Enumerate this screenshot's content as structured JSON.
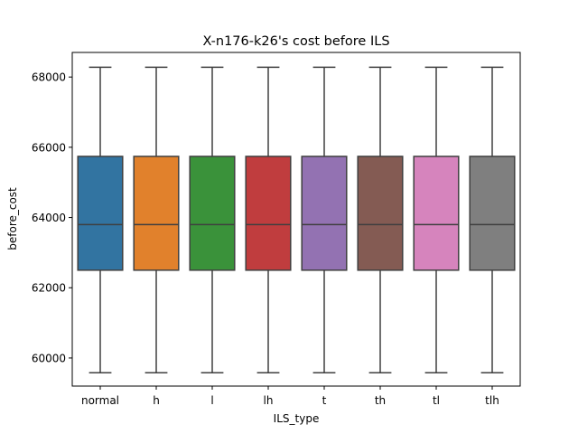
{
  "chart_data": {
    "type": "box",
    "title": "X-n176-k26's cost before ILS",
    "xlabel": "ILS_type",
    "ylabel": "before_cost",
    "ylim": [
      59200,
      68700
    ],
    "yticks": [
      60000,
      62000,
      64000,
      66000,
      68000
    ],
    "ytick_labels": [
      "60000",
      "62000",
      "64000",
      "66000",
      "68000"
    ],
    "grid": false,
    "legend": "none",
    "categories": [
      "normal",
      "h",
      "l",
      "lh",
      "t",
      "th",
      "tl",
      "tlh"
    ],
    "boxes": [
      {
        "category": "normal",
        "whisker_low": 59580,
        "q1": 62500,
        "median": 63800,
        "q3": 65740,
        "whisker_high": 68280,
        "color": "#3274a1"
      },
      {
        "category": "h",
        "whisker_low": 59580,
        "q1": 62500,
        "median": 63800,
        "q3": 65740,
        "whisker_high": 68280,
        "color": "#e1812c"
      },
      {
        "category": "l",
        "whisker_low": 59580,
        "q1": 62500,
        "median": 63800,
        "q3": 65740,
        "whisker_high": 68280,
        "color": "#3a923a"
      },
      {
        "category": "lh",
        "whisker_low": 59580,
        "q1": 62500,
        "median": 63800,
        "q3": 65740,
        "whisker_high": 68280,
        "color": "#c03d3e"
      },
      {
        "category": "t",
        "whisker_low": 59580,
        "q1": 62500,
        "median": 63800,
        "q3": 65740,
        "whisker_high": 68280,
        "color": "#9372b2"
      },
      {
        "category": "th",
        "whisker_low": 59580,
        "q1": 62500,
        "median": 63800,
        "q3": 65740,
        "whisker_high": 68280,
        "color": "#845b53"
      },
      {
        "category": "tl",
        "whisker_low": 59580,
        "q1": 62500,
        "median": 63800,
        "q3": 65740,
        "whisker_high": 68280,
        "color": "#d684bd"
      },
      {
        "category": "tlh",
        "whisker_low": 59580,
        "q1": 62500,
        "median": 63800,
        "q3": 65740,
        "whisker_high": 68280,
        "color": "#7f7f7f"
      }
    ],
    "line_color": "#3f3f3f"
  }
}
